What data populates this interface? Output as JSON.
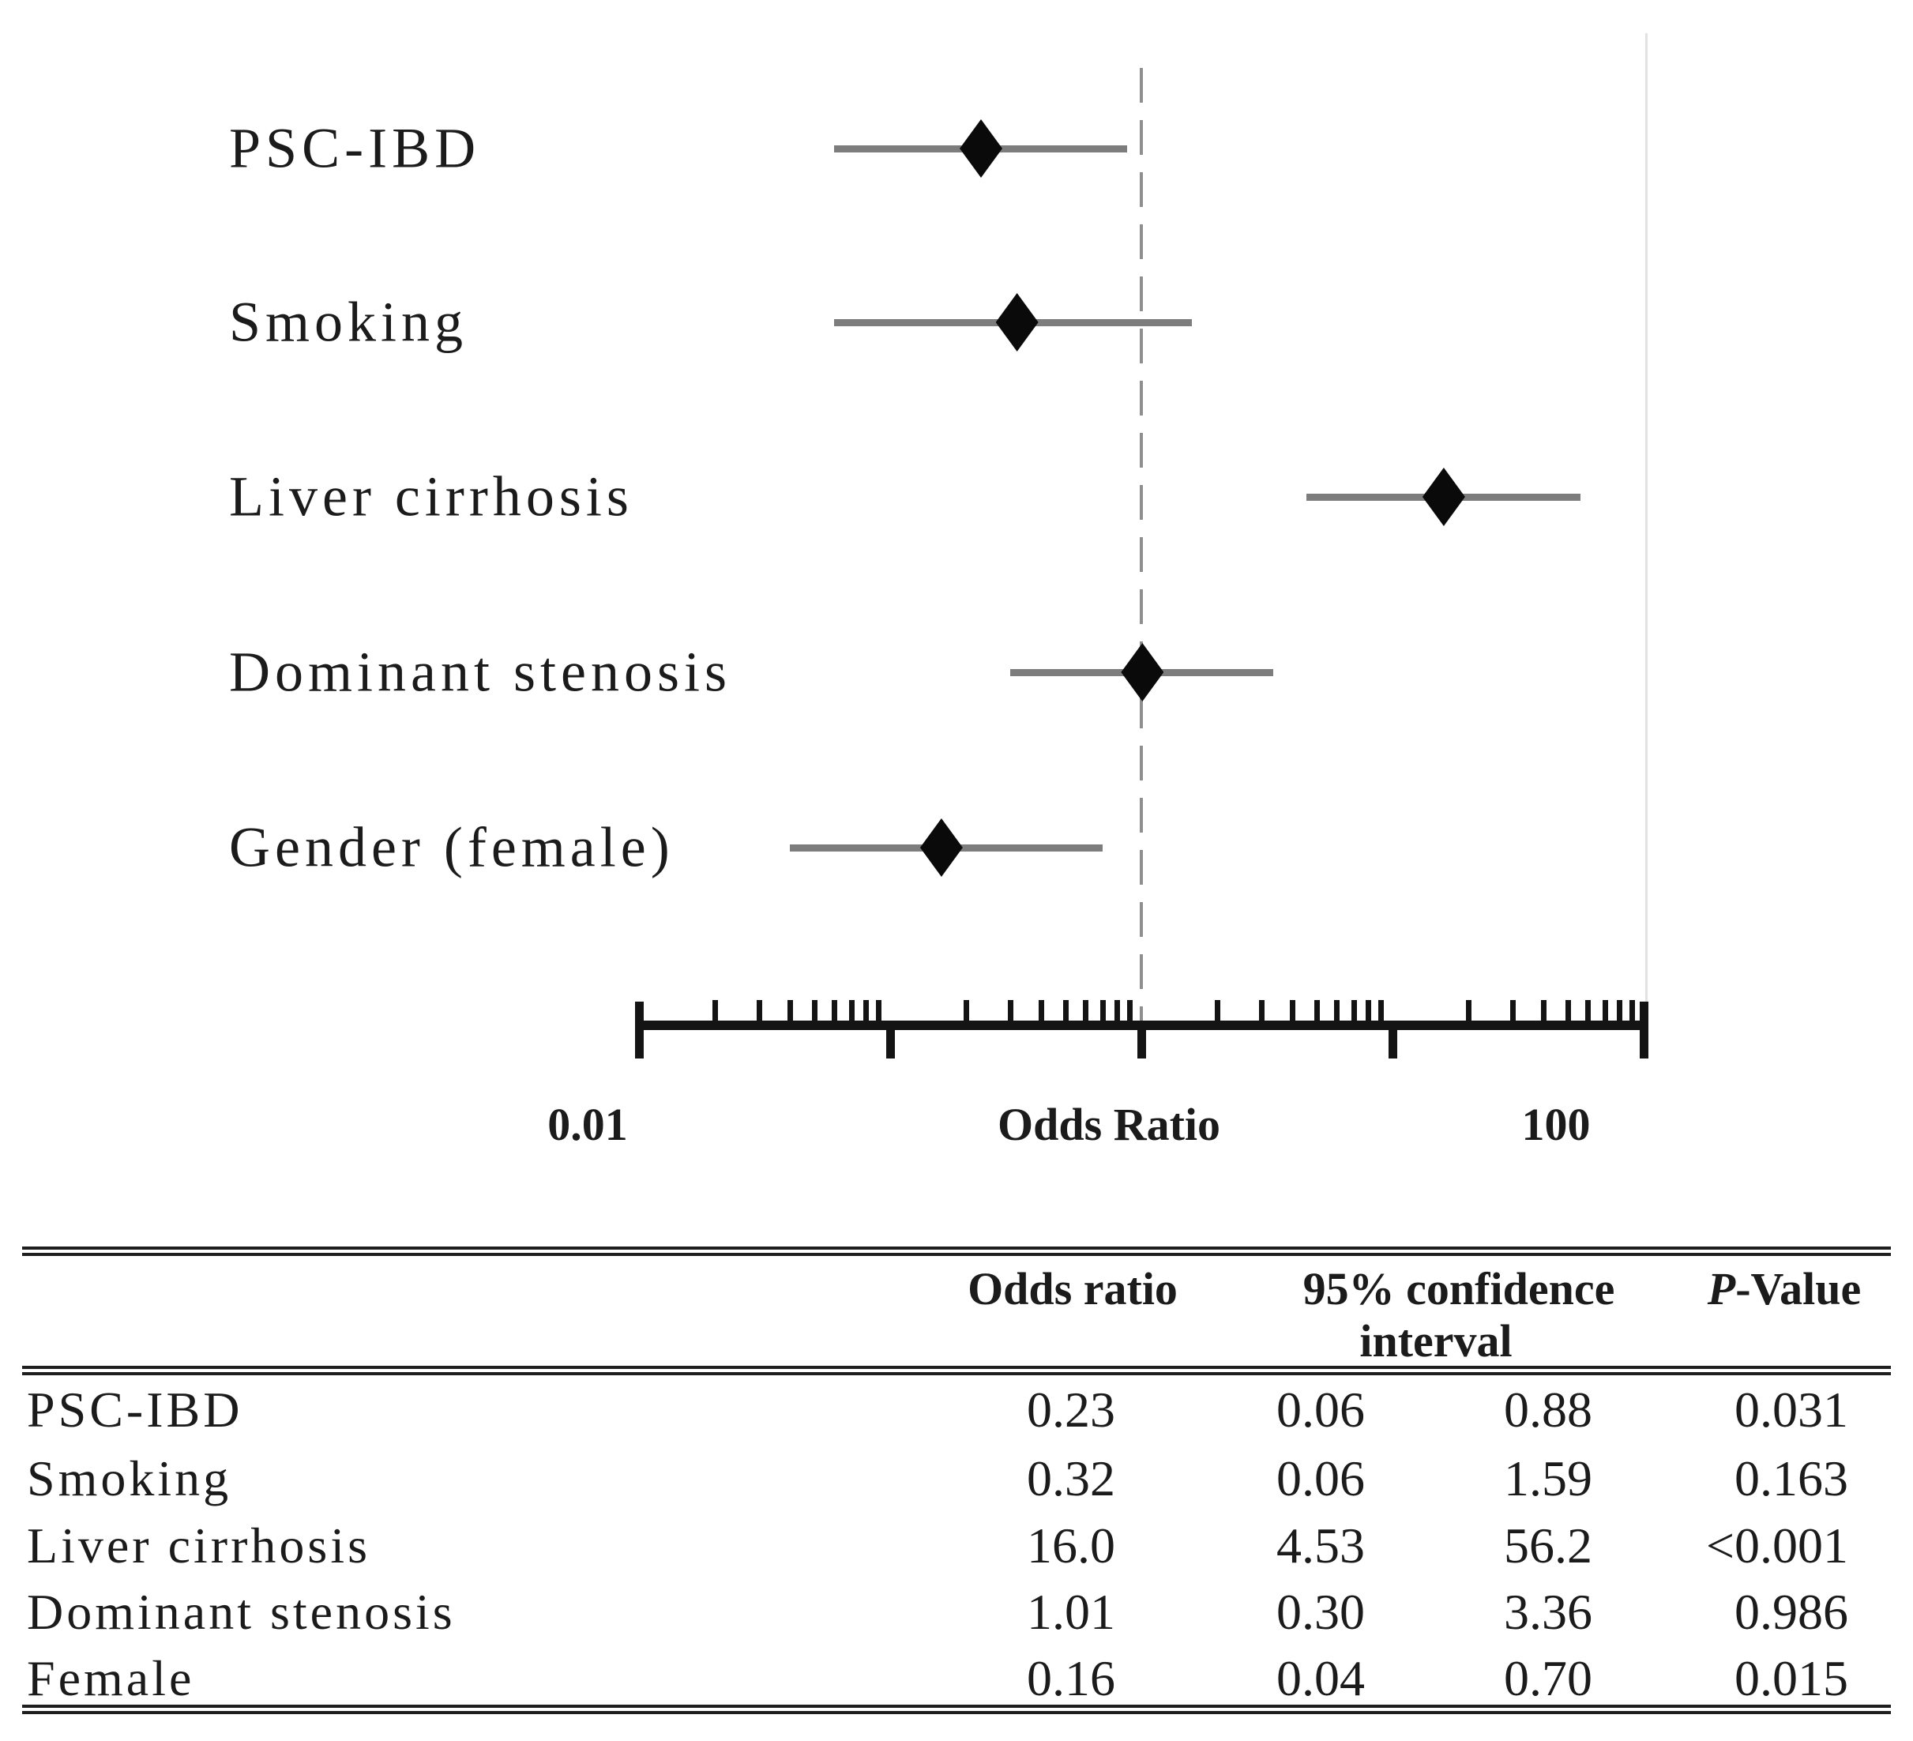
{
  "chart_data": {
    "type": "forest",
    "xlabel": "Odds Ratio",
    "x_axis": {
      "scale": "log10",
      "min": 0.01,
      "max": 100,
      "major_ticks": [
        0.01,
        0.1,
        1,
        10,
        100
      ],
      "minor_ticks_per_decade": [
        2,
        3,
        4,
        5,
        6,
        7,
        8,
        9
      ],
      "labeled_ticks": [
        "0.01",
        "100"
      ],
      "reference_line_at": 1
    },
    "rows": [
      {
        "label": "PSC-IBD",
        "or": 0.23,
        "ci_low": 0.06,
        "ci_high": 0.88
      },
      {
        "label": "Smoking",
        "or": 0.32,
        "ci_low": 0.06,
        "ci_high": 1.59
      },
      {
        "label": "Liver cirrhosis",
        "or": 16.0,
        "ci_low": 4.53,
        "ci_high": 56.2
      },
      {
        "label": "Dominant stenosis",
        "or": 1.01,
        "ci_low": 0.3,
        "ci_high": 3.36
      },
      {
        "label": "Gender (female)",
        "or": 0.16,
        "ci_low": 0.04,
        "ci_high": 0.7
      }
    ]
  },
  "axis_labels": {
    "min": "0.01",
    "center": "Odds Ratio",
    "max": "100"
  },
  "table": {
    "headers": {
      "odds_ratio": "Odds ratio",
      "ci_line1": "95% confidence",
      "ci_line2": "interval",
      "p_prefix": "P",
      "p_suffix": "-Value"
    },
    "rows": [
      {
        "label": "PSC-IBD",
        "or": "0.23",
        "ci_low": "0.06",
        "ci_high": "0.88",
        "p": "0.031"
      },
      {
        "label": "Smoking",
        "or": "0.32",
        "ci_low": "0.06",
        "ci_high": "1.59",
        "p": "0.163"
      },
      {
        "label": "Liver cirrhosis",
        "or": "16.0",
        "ci_low": "4.53",
        "ci_high": "56.2",
        "p": "<0.001"
      },
      {
        "label": "Dominant stenosis",
        "or": "1.01",
        "ci_low": "0.30",
        "ci_high": "3.36",
        "p": "0.986"
      },
      {
        "label": "Female",
        "or": "0.16",
        "ci_low": "0.04",
        "ci_high": "0.70",
        "p": "0.015"
      }
    ]
  },
  "colors": {
    "text": "#1b1b1b",
    "ci_line": "#7d7d7d",
    "diamond": "#0a0a0a",
    "dashed_reference": "#8f8f8f",
    "faint_gridline": "#e2e2e2",
    "axis": "#141414"
  }
}
